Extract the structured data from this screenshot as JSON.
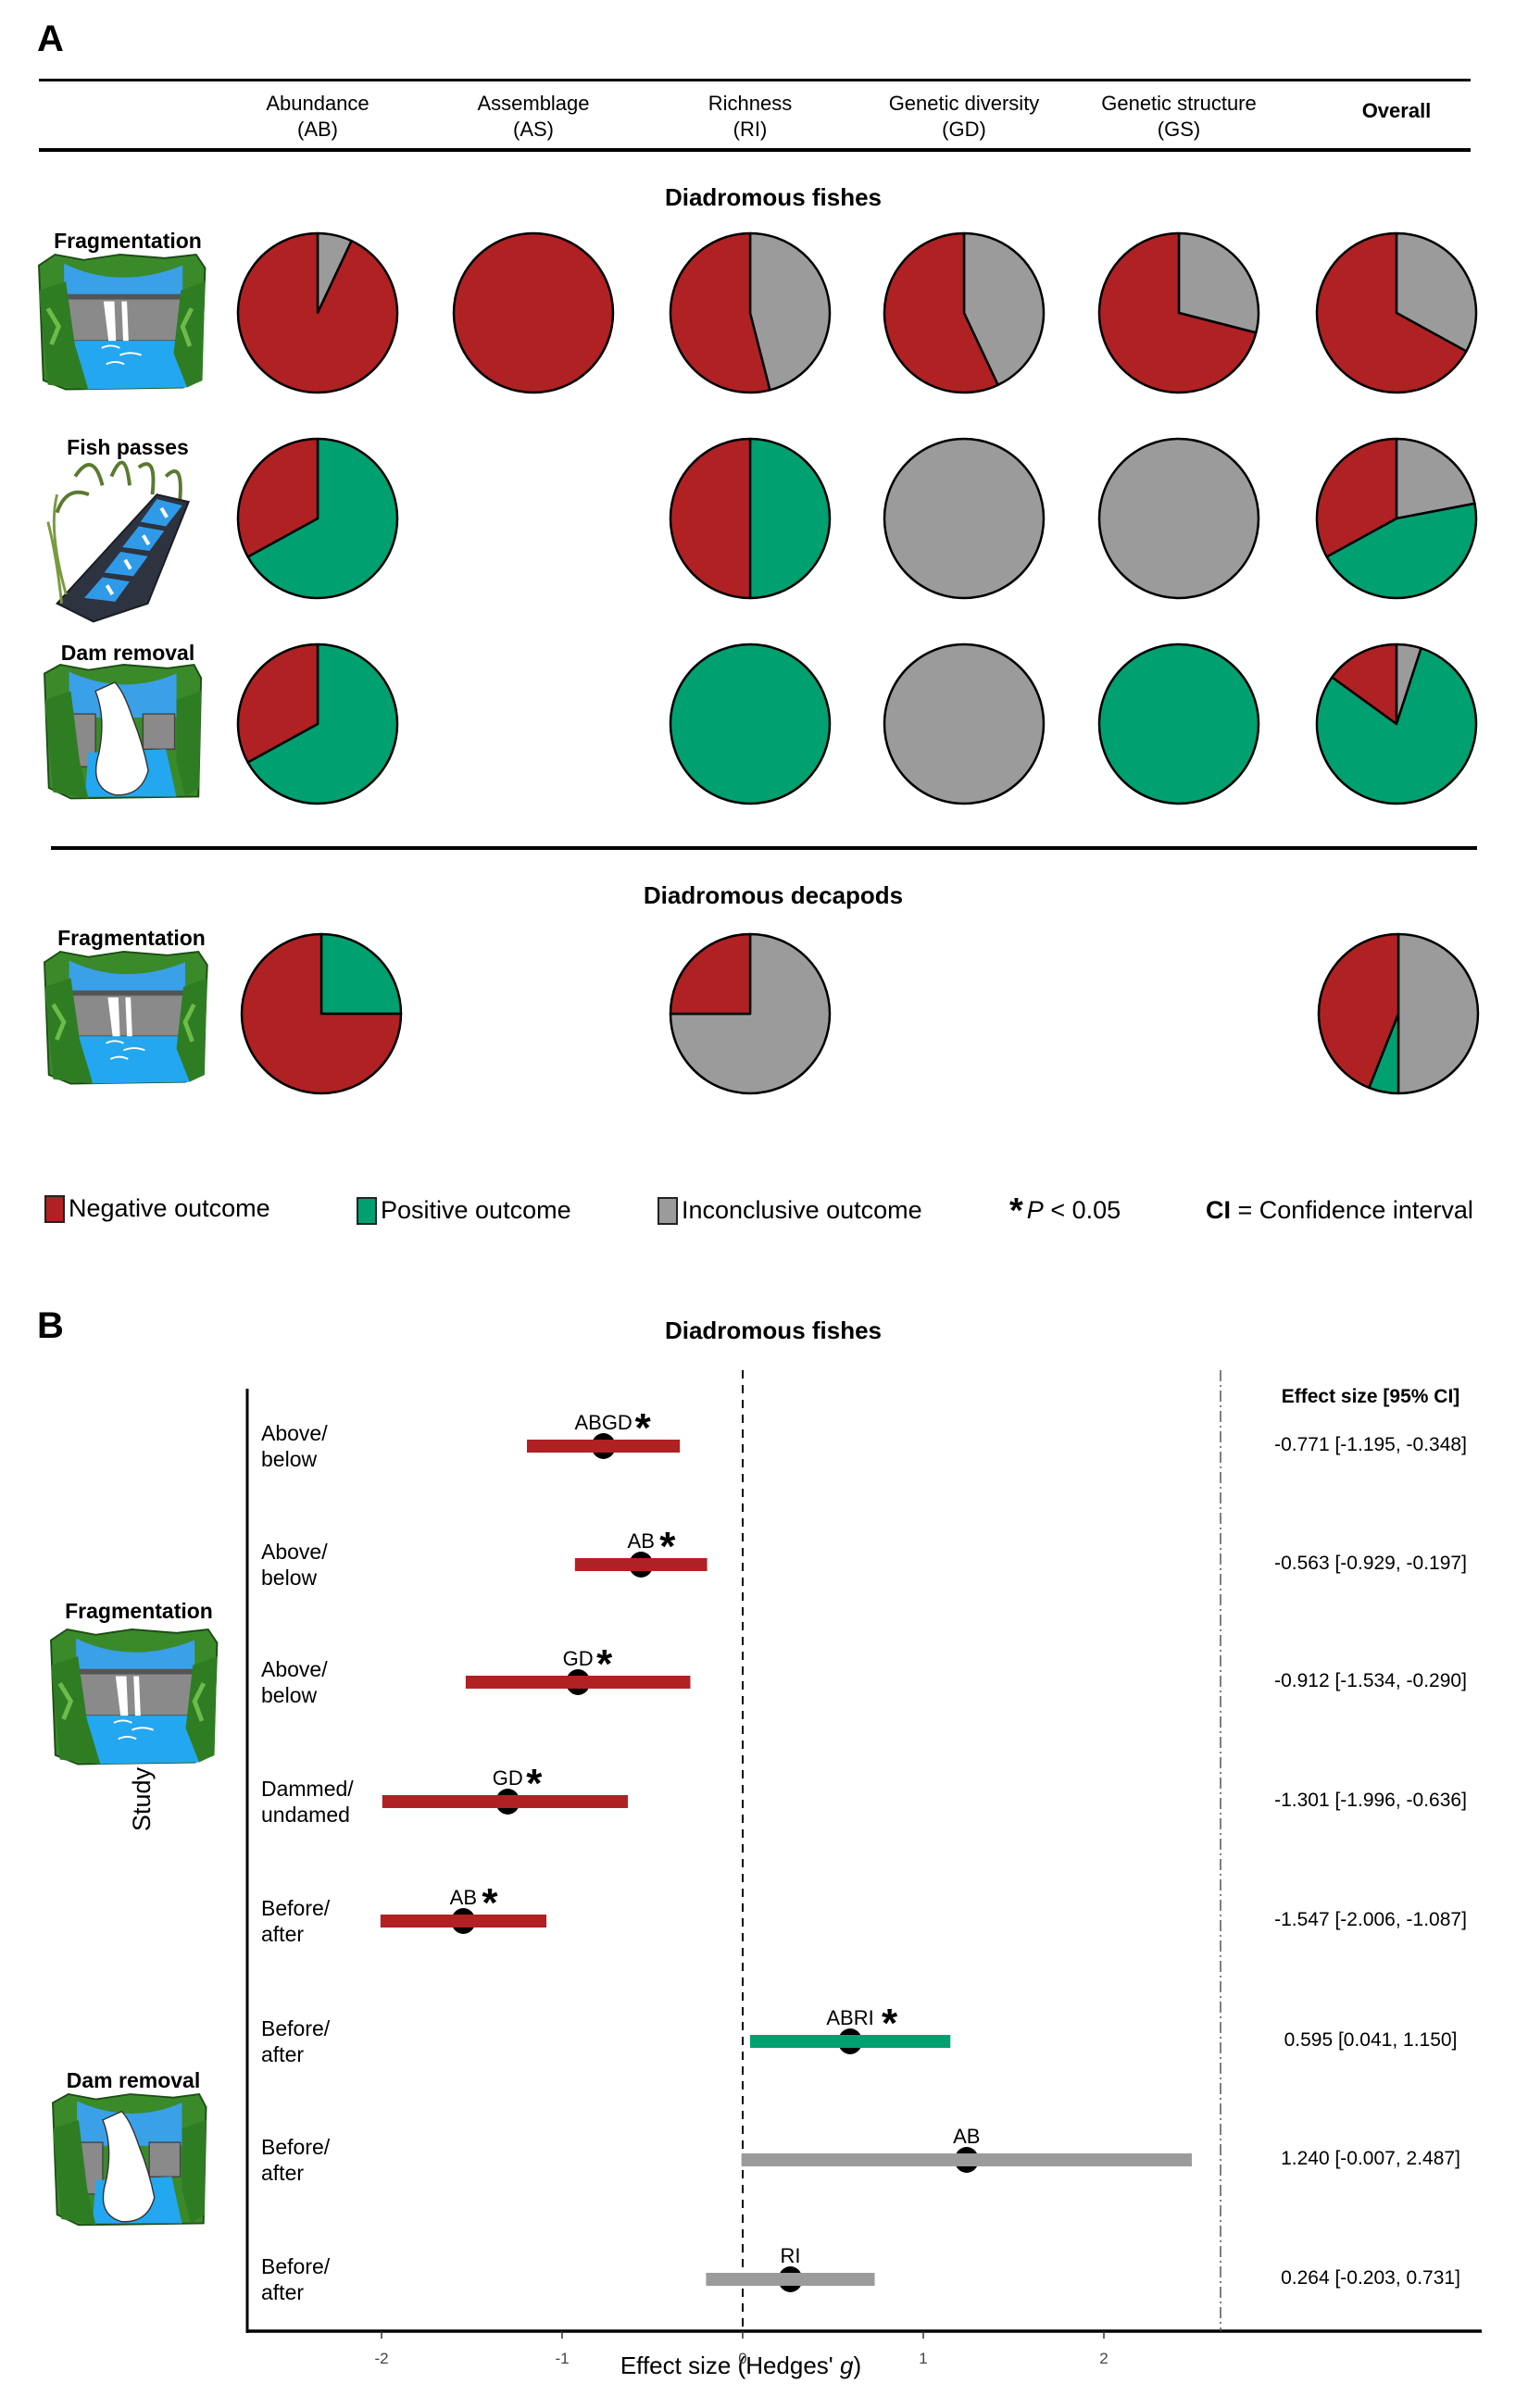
{
  "panel_a": {
    "letter": "A",
    "columns": [
      {
        "name": "Abundance",
        "abbr": "(AB)"
      },
      {
        "name": "Assemblage",
        "abbr": "(AS)"
      },
      {
        "name": "Richness",
        "abbr": "(RI)"
      },
      {
        "name": "Genetic diversity",
        "abbr": "(GD)"
      },
      {
        "name": "Genetic structure",
        "abbr": "(GS)"
      },
      {
        "name": "Overall",
        "abbr": ""
      }
    ],
    "sections": [
      {
        "title": "Diadromous fishes",
        "rows": [
          {
            "label": "Fragmentation",
            "icon": "dam-fragmentation-icon"
          },
          {
            "label": "Fish passes",
            "icon": "fish-pass-icon"
          },
          {
            "label": "Dam removal",
            "icon": "dam-removal-icon"
          }
        ]
      },
      {
        "title": "Diadromous decapods",
        "rows": [
          {
            "label": "Fragmentation",
            "icon": "dam-fragmentation-icon"
          }
        ]
      }
    ],
    "legend": {
      "negative": "Negative outcome",
      "positive": "Positive outcome",
      "inconclusive": "Inconclusive outcome",
      "significance_star": "*",
      "significance_p": "P",
      "significance_text": " < 0.05",
      "ci_abbr": "CI",
      "ci_text": " = Confidence interval"
    }
  },
  "panel_b": {
    "letter": "B",
    "title": "Diadromous fishes",
    "ylabel": "Study design",
    "xlabel_prefix": "Effect size (Hedges' ",
    "xlabel_italic": "g",
    "xlabel_suffix": ")",
    "es_header": "Effect size [95% CI]",
    "groups": [
      {
        "label": "Fragmentation",
        "icon": "dam-fragmentation-icon"
      },
      {
        "label": "Dam removal",
        "icon": "dam-removal-icon"
      }
    ]
  },
  "colors": {
    "negative": "#B02124",
    "positive": "#00A070",
    "inconclusive": "#9B9B9B"
  },
  "chart_data": [
    {
      "type": "pie",
      "title": "Diadromous fishes — outcome proportions",
      "categories": [
        "Negative outcome",
        "Positive outcome",
        "Inconclusive outcome"
      ],
      "rows": [
        {
          "row": "Fragmentation",
          "cells": [
            {
              "column": "AB",
              "negative": 0.93,
              "positive": 0,
              "inconclusive": 0.07
            },
            {
              "column": "AS",
              "negative": 1.0,
              "positive": 0,
              "inconclusive": 0
            },
            {
              "column": "RI",
              "negative": 0.54,
              "positive": 0,
              "inconclusive": 0.46
            },
            {
              "column": "GD",
              "negative": 0.57,
              "positive": 0,
              "inconclusive": 0.43
            },
            {
              "column": "GS",
              "negative": 0.71,
              "positive": 0,
              "inconclusive": 0.29
            },
            {
              "column": "Overall",
              "negative": 0.67,
              "positive": 0,
              "inconclusive": 0.33
            }
          ]
        },
        {
          "row": "Fish passes",
          "cells": [
            {
              "column": "AB",
              "negative": 0.33,
              "positive": 0.67,
              "inconclusive": 0
            },
            {
              "column": "AS",
              "negative": null,
              "positive": null,
              "inconclusive": null
            },
            {
              "column": "RI",
              "negative": 0.5,
              "positive": 0.5,
              "inconclusive": 0
            },
            {
              "column": "GD",
              "negative": 0,
              "positive": 0,
              "inconclusive": 1.0
            },
            {
              "column": "GS",
              "negative": 0,
              "positive": 0,
              "inconclusive": 1.0
            },
            {
              "column": "Overall",
              "negative": 0.33,
              "positive": 0.45,
              "inconclusive": 0.22
            }
          ]
        },
        {
          "row": "Dam removal",
          "cells": [
            {
              "column": "AB",
              "negative": 0.33,
              "positive": 0.67,
              "inconclusive": 0
            },
            {
              "column": "AS",
              "negative": null,
              "positive": null,
              "inconclusive": null
            },
            {
              "column": "RI",
              "negative": 0,
              "positive": 1.0,
              "inconclusive": 0
            },
            {
              "column": "GD",
              "negative": 0,
              "positive": 0,
              "inconclusive": 1.0
            },
            {
              "column": "GS",
              "negative": 0,
              "positive": 1.0,
              "inconclusive": 0
            },
            {
              "column": "Overall",
              "negative": 0.15,
              "positive": 0.8,
              "inconclusive": 0.05
            }
          ]
        }
      ]
    },
    {
      "type": "pie",
      "title": "Diadromous decapods — outcome proportions",
      "categories": [
        "Negative outcome",
        "Positive outcome",
        "Inconclusive outcome"
      ],
      "rows": [
        {
          "row": "Fragmentation",
          "cells": [
            {
              "column": "AB",
              "negative": 0.75,
              "positive": 0.25,
              "inconclusive": 0
            },
            {
              "column": "AS",
              "negative": null,
              "positive": null,
              "inconclusive": null
            },
            {
              "column": "RI",
              "negative": 0.25,
              "positive": 0,
              "inconclusive": 0.75
            },
            {
              "column": "GD",
              "negative": null,
              "positive": null,
              "inconclusive": null
            },
            {
              "column": "GS",
              "negative": null,
              "positive": null,
              "inconclusive": null
            },
            {
              "column": "Overall",
              "negative": 0.44,
              "positive": 0.06,
              "inconclusive": 0.5
            }
          ]
        }
      ]
    },
    {
      "type": "scatter",
      "subtype": "forest-plot",
      "title": "Diadromous fishes",
      "xlabel": "Effect size (Hedges' g)",
      "ylabel": "Study design",
      "xlim": [
        -2.8,
        2.65
      ],
      "xticks": [
        -2,
        -1,
        0,
        1,
        2
      ],
      "reference_line": 0,
      "grid": false,
      "points": [
        {
          "group": "Fragmentation",
          "design": "Above/\nbelow",
          "label": "ABGD",
          "significant": true,
          "outcome": "negative",
          "estimate": -0.771,
          "ci_low": -1.195,
          "ci_high": -0.348,
          "text": "-0.771 [-1.195, -0.348]"
        },
        {
          "group": "Fragmentation",
          "design": "Above/\nbelow",
          "label": "AB",
          "significant": true,
          "outcome": "negative",
          "estimate": -0.563,
          "ci_low": -0.929,
          "ci_high": -0.197,
          "text": "-0.563 [-0.929, -0.197]"
        },
        {
          "group": "Fragmentation",
          "design": "Above/\nbelow",
          "label": "GD",
          "significant": true,
          "outcome": "negative",
          "estimate": -0.912,
          "ci_low": -1.534,
          "ci_high": -0.29,
          "text": "-0.912 [-1.534, -0.290]"
        },
        {
          "group": "Fragmentation",
          "design": "Dammed/\nundamed",
          "label": "GD",
          "significant": true,
          "outcome": "negative",
          "estimate": -1.301,
          "ci_low": -1.996,
          "ci_high": -0.636,
          "text": "-1.301 [-1.996, -0.636]"
        },
        {
          "group": "Fragmentation",
          "design": "Before/\nafter",
          "label": "AB",
          "significant": true,
          "outcome": "negative",
          "estimate": -1.547,
          "ci_low": -2.006,
          "ci_high": -1.087,
          "text": "-1.547 [-2.006, -1.087]"
        },
        {
          "group": "Dam removal",
          "design": "Before/\nafter",
          "label": "ABRI",
          "significant": true,
          "outcome": "positive",
          "estimate": 0.595,
          "ci_low": 0.041,
          "ci_high": 1.15,
          "text": "0.595 [0.041, 1.150]"
        },
        {
          "group": "Dam removal",
          "design": "Before/\nafter",
          "label": "AB",
          "significant": false,
          "outcome": "inconclusive",
          "estimate": 1.24,
          "ci_low": -0.007,
          "ci_high": 2.487,
          "text": "1.240 [-0.007, 2.487]"
        },
        {
          "group": "Dam removal",
          "design": "Before/\nafter",
          "label": "RI",
          "significant": false,
          "outcome": "inconclusive",
          "estimate": 0.264,
          "ci_low": -0.203,
          "ci_high": 0.731,
          "text": "0.264 [-0.203, 0.731]"
        }
      ]
    }
  ]
}
